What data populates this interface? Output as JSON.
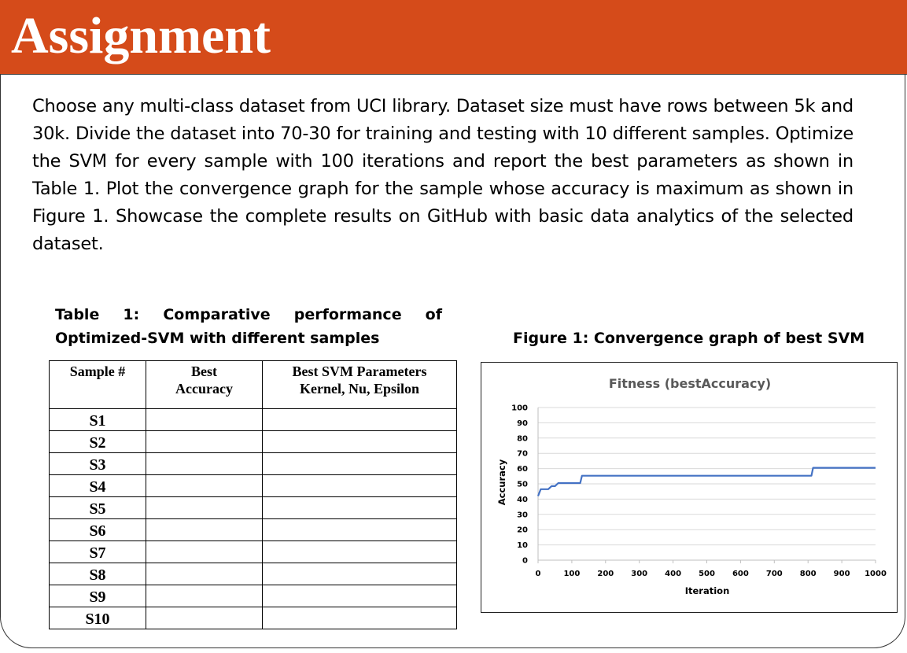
{
  "banner": {
    "title": "Assignment"
  },
  "body": {
    "paragraph": "Choose any multi-class dataset from UCI library. Dataset size must have rows between 5k and 30k. Divide the dataset into 70-30 for training and testing with 10 different samples. Optimize the SVM for every sample with 100 iterations and report the best parameters as shown in Table 1. Plot the convergence graph for the sample whose accuracy is maximum as shown in Figure 1. Showcase the complete results on GitHub with basic data analytics of the selected dataset."
  },
  "table": {
    "caption": "Table 1: Comparative performance of Optimized-SVM with different samples",
    "headers": {
      "col1": "Sample #",
      "col2_line1": "Best",
      "col2_line2": "Accuracy",
      "col3_line1": "Best SVM Parameters",
      "col3_line2": "Kernel, Nu, Epsilon"
    },
    "rows": [
      "S1",
      "S2",
      "S3",
      "S4",
      "S5",
      "S6",
      "S7",
      "S8",
      "S9",
      "S10"
    ]
  },
  "figure": {
    "caption": "Figure 1: Convergence graph of best SVM"
  },
  "chart_data": {
    "type": "line",
    "title": "Fitness (bestAccuracy)",
    "xlabel": "Iteration",
    "ylabel": "Accuracy",
    "xlim": [
      0,
      1000
    ],
    "ylim": [
      0,
      100
    ],
    "xticks": [
      0,
      100,
      200,
      300,
      400,
      500,
      600,
      700,
      800,
      900,
      1000
    ],
    "yticks": [
      0,
      10,
      20,
      30,
      40,
      50,
      60,
      70,
      80,
      90,
      100
    ],
    "grid": true,
    "series_color": "#4472c4",
    "series": [
      {
        "x": [
          0,
          8,
          30,
          40,
          50,
          60,
          125,
          130,
          810,
          815,
          1000
        ],
        "values": [
          42,
          46.5,
          46.5,
          48.5,
          48.5,
          50.5,
          50.5,
          55.3,
          55.3,
          60.5,
          60.5
        ]
      }
    ]
  }
}
